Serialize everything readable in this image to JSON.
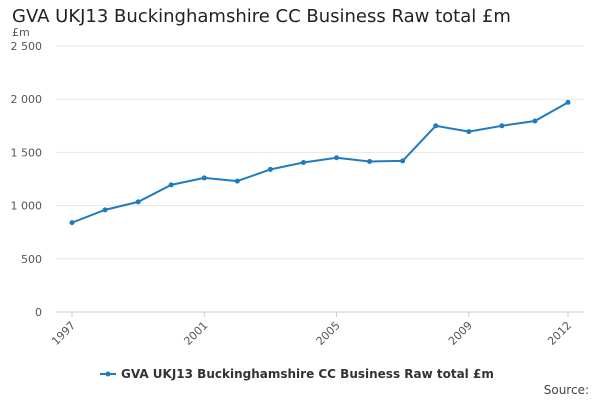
{
  "chart_data": {
    "type": "line",
    "title": "GVA UKJ13 Buckinghamshire CC Business Raw total £m",
    "unit_label": "£m",
    "xlabel": "",
    "ylabel": "",
    "x_tick_labels": [
      "1997",
      "2001",
      "2005",
      "2009",
      "2012"
    ],
    "y_tick_labels": [
      "0",
      "500",
      "1 000",
      "1 500",
      "2 000",
      "2 500"
    ],
    "y_ticks": [
      0,
      500,
      1000,
      1500,
      2000,
      2500
    ],
    "ylim": [
      0,
      2500
    ],
    "xlim": [
      1997,
      2012
    ],
    "grid": true,
    "legend_position": "bottom",
    "x": [
      1997,
      1998,
      1999,
      2000,
      2001,
      2002,
      2003,
      2004,
      2005,
      2006,
      2007,
      2008,
      2009,
      2010,
      2011,
      2012
    ],
    "series": [
      {
        "name": "GVA UKJ13 Buckinghamshire CC Business Raw total £m",
        "color": "#1f7bbf",
        "values": [
          840,
          960,
          1035,
          1195,
          1260,
          1230,
          1340,
          1405,
          1450,
          1415,
          1420,
          1750,
          1695,
          1750,
          1795,
          1970
        ]
      }
    ],
    "source_label": "Source:"
  }
}
